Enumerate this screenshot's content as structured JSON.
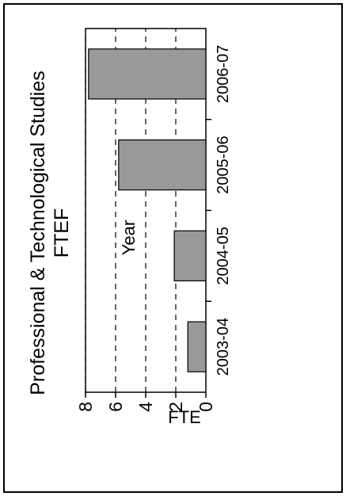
{
  "chart_data": {
    "type": "bar",
    "orientation": "rotated-90-ccw",
    "title": "Professional & Technological Studies",
    "subtitle": "FTEF",
    "xlabel": "Year",
    "ylabel": "FTE",
    "categories": [
      "2003-04",
      "2004-05",
      "2005-06",
      "2006-07"
    ],
    "values": [
      1.2,
      2.1,
      5.8,
      7.8
    ],
    "ylim": [
      0,
      8
    ],
    "yticks": [
      0,
      2,
      4,
      6,
      8
    ],
    "grid": "dashed at 2, 4, 6, 8",
    "legend": "none",
    "colors": {
      "bar": "#999999",
      "bar_stroke": "#000000",
      "border": "#000000"
    }
  }
}
